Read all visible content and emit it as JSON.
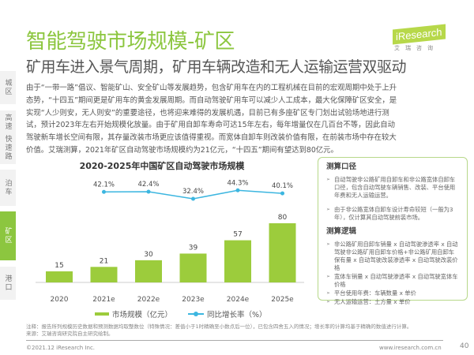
{
  "header": {
    "title": "智能驾驶市场规模-矿区",
    "subtitle": "矿用车进入景气周期，矿用车辆改造和无人运输运营双驱动"
  },
  "logo": {
    "brand": "iResearch",
    "sub": "艾瑞咨询"
  },
  "sidebar": {
    "items": [
      {
        "label": "城区"
      },
      {
        "label": "高速 快速路"
      },
      {
        "label": "泊车"
      },
      {
        "label": "矿区",
        "active": true
      },
      {
        "label": "港口"
      }
    ]
  },
  "body_text": "由于“一带一路”倡议、智能矿山、安全矿山等发展趋势，包含矿用车在内的工程机械在目前的宏观周期中处于上升态势，“十四五”期间更是矿用车的黄金发展周期。而自动驾驶矿用车可以减少人工成本，最大化保障矿区安全，是实现“人少则安，无人则安”的重要途径，也将迎来难得的发展机遇，目前已有多座矿区专门划出试验场地进行测试，预计2023年左右开始规模化放量。由于矿用自卸车寿命可达15年左右，每年增量仅在几百台不等，因此自动驾驶新车增长空间有限，其存量改装市场更应该值得重视。而宽体自卸车则改装价值有限，在前装市场中存在较大价值。艾瑞测算，2021年矿区自动驾驶市场规模约为21亿元，“十四五”期间有望达到80亿元。",
  "chart_data": {
    "type": "bar",
    "title": "2020-2025年中国矿区自动驾驶市场规模",
    "categories": [
      "2020",
      "2021e",
      "2022e",
      "2023e",
      "2024e",
      "2025e"
    ],
    "series": [
      {
        "name": "市场规模（亿元）",
        "type": "bar",
        "values": [
          15,
          21,
          30,
          39,
          57,
          80
        ],
        "color": "#9ccc3c"
      },
      {
        "name": "同比增长率（%）",
        "type": "line",
        "values": [
          null,
          42.1,
          42.4,
          32.4,
          44.3,
          40.1
        ],
        "labels": [
          "",
          "42.1%",
          "42.4%",
          "32.4%",
          "44.3%",
          "40.1%"
        ],
        "color": "#3cb6e0"
      }
    ]
  },
  "box": {
    "h1": "测算口径",
    "items1": [
      "自动驾驶非公路矿用自卸车和非公路宽体自卸车口径，包含自动驾驶车辆销售、改装、平台使用年费和无人运输运营。",
      "由于非公路宽体自卸车设计寿命较短（一般为3年），仅计算其自动驾驶前装市场。"
    ],
    "h2": "测算逻辑",
    "items2": [
      "非公路矿用自卸车销量 x 自动驾驶渗透率 x 自动驾驶非公路矿用自卸车价格+非公路矿用自卸车保有量 x 自动驾驶改装渗透率 x 自动驾驶改装价格",
      "宽体车销量 x 自动驾驶渗透率 x 自动驾驶宽体车价格",
      "平台使用年费：车辆数量 x 单价",
      "无人运输运营：土方量 x 单价"
    ]
  },
  "footer": {
    "note": "注释：报告所列规模历史数据和预测数据均取整数位（特殊情况：差值小于1时精确至小数点后一位），已包含四舍五入的情况；增长率的计算均基于精确的数值进行计算。",
    "source": "来源：艾瑞咨询研究院自主研究绘制。",
    "copyright": "©2021.12 iResearch Inc.",
    "url": "www.iresearch.com.cn",
    "page": "40"
  }
}
